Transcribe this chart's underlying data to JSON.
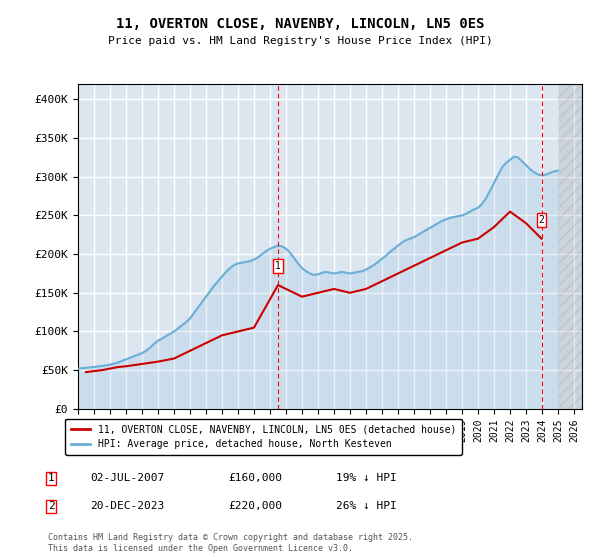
{
  "title": "11, OVERTON CLOSE, NAVENBY, LINCOLN, LN5 0ES",
  "subtitle": "Price paid vs. HM Land Registry's House Price Index (HPI)",
  "ylabel_ticks": [
    "£0",
    "£50K",
    "£100K",
    "£150K",
    "£200K",
    "£250K",
    "£300K",
    "£350K",
    "£400K"
  ],
  "ylim": [
    0,
    420000
  ],
  "xlim_start": 1995.0,
  "xlim_end": 2026.5,
  "background_color": "#dce6f1",
  "plot_bg_color": "#dce6f1",
  "grid_color": "#ffffff",
  "hpi_color": "#6baed6",
  "price_color": "#cc0000",
  "marker1_date": 2007.5,
  "marker1_price": 160000,
  "marker1_label": "1",
  "marker2_date": 2023.97,
  "marker2_price": 220000,
  "marker2_label": "2",
  "legend_line1": "11, OVERTON CLOSE, NAVENBY, LINCOLN, LN5 0ES (detached house)",
  "legend_line2": "HPI: Average price, detached house, North Kesteven",
  "annotation1": "1     02-JUL-2007          £160,000          19% ↓ HPI",
  "annotation2": "2     20-DEC-2023          £220,000          26% ↓ HPI",
  "footnote": "Contains HM Land Registry data © Crown copyright and database right 2025.\nThis data is licensed under the Open Government Licence v3.0.",
  "hpi_x": [
    1995.0,
    1995.25,
    1995.5,
    1995.75,
    1996.0,
    1996.25,
    1996.5,
    1996.75,
    1997.0,
    1997.25,
    1997.5,
    1997.75,
    1998.0,
    1998.25,
    1998.5,
    1998.75,
    1999.0,
    1999.25,
    1999.5,
    1999.75,
    2000.0,
    2000.25,
    2000.5,
    2000.75,
    2001.0,
    2001.25,
    2001.5,
    2001.75,
    2002.0,
    2002.25,
    2002.5,
    2002.75,
    2003.0,
    2003.25,
    2003.5,
    2003.75,
    2004.0,
    2004.25,
    2004.5,
    2004.75,
    2005.0,
    2005.25,
    2005.5,
    2005.75,
    2006.0,
    2006.25,
    2006.5,
    2006.75,
    2007.0,
    2007.25,
    2007.5,
    2007.75,
    2008.0,
    2008.25,
    2008.5,
    2008.75,
    2009.0,
    2009.25,
    2009.5,
    2009.75,
    2010.0,
    2010.25,
    2010.5,
    2010.75,
    2011.0,
    2011.25,
    2011.5,
    2011.75,
    2012.0,
    2012.25,
    2012.5,
    2012.75,
    2013.0,
    2013.25,
    2013.5,
    2013.75,
    2014.0,
    2014.25,
    2014.5,
    2014.75,
    2015.0,
    2015.25,
    2015.5,
    2015.75,
    2016.0,
    2016.25,
    2016.5,
    2016.75,
    2017.0,
    2017.25,
    2017.5,
    2017.75,
    2018.0,
    2018.25,
    2018.5,
    2018.75,
    2019.0,
    2019.25,
    2019.5,
    2019.75,
    2020.0,
    2020.25,
    2020.5,
    2020.75,
    2021.0,
    2021.25,
    2021.5,
    2021.75,
    2022.0,
    2022.25,
    2022.5,
    2022.75,
    2023.0,
    2023.25,
    2023.5,
    2023.75,
    2024.0,
    2024.25,
    2024.5,
    2024.75,
    2025.0
  ],
  "hpi_y": [
    52000,
    52500,
    53000,
    53500,
    54000,
    54800,
    55500,
    56200,
    57000,
    58500,
    60000,
    62000,
    64000,
    66000,
    68000,
    70000,
    72000,
    75000,
    79000,
    84000,
    88000,
    91000,
    94000,
    97000,
    100000,
    104000,
    108000,
    112000,
    117000,
    124000,
    131000,
    138000,
    145000,
    152000,
    159000,
    165000,
    171000,
    177000,
    182000,
    186000,
    188000,
    189000,
    190000,
    191000,
    193000,
    196000,
    200000,
    204000,
    207000,
    209000,
    211000,
    210000,
    207000,
    202000,
    195000,
    188000,
    182000,
    178000,
    175000,
    173000,
    174000,
    176000,
    177000,
    176000,
    175000,
    176000,
    177000,
    176000,
    175000,
    176000,
    177000,
    178000,
    180000,
    183000,
    186000,
    190000,
    194000,
    198000,
    203000,
    207000,
    211000,
    215000,
    218000,
    220000,
    222000,
    225000,
    228000,
    231000,
    234000,
    237000,
    240000,
    243000,
    245000,
    247000,
    248000,
    249000,
    250000,
    252000,
    255000,
    258000,
    260000,
    265000,
    272000,
    282000,
    292000,
    302000,
    312000,
    318000,
    322000,
    326000,
    325000,
    320000,
    315000,
    310000,
    306000,
    303000,
    302000,
    303000,
    305000,
    307000,
    308000
  ],
  "price_x": [
    1995.5,
    1996.5,
    1997.0,
    1997.5,
    1998.0,
    1999.0,
    2000.0,
    2001.0,
    2002.0,
    2003.0,
    2004.0,
    2005.0,
    2006.0,
    2007.5,
    2009.0,
    2010.0,
    2011.0,
    2012.0,
    2013.0,
    2014.0,
    2015.0,
    2016.0,
    2017.0,
    2018.0,
    2019.0,
    2020.0,
    2021.0,
    2022.0,
    2023.0,
    2023.97
  ],
  "price_y": [
    47500,
    50000,
    52000,
    54000,
    55000,
    58000,
    61000,
    65000,
    75000,
    85000,
    95000,
    100000,
    105000,
    160000,
    145000,
    150000,
    155000,
    150000,
    155000,
    165000,
    175000,
    185000,
    195000,
    205000,
    215000,
    220000,
    235000,
    255000,
    240000,
    220000
  ]
}
